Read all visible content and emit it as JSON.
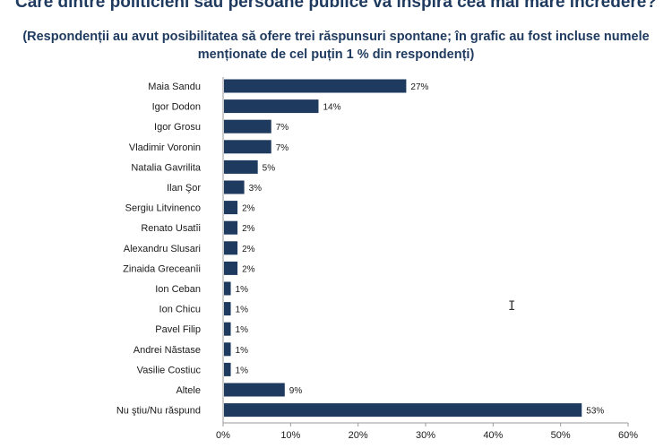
{
  "title": "Care dintre politicieni sau persoane publice vă inspiră cea mai mare încredere?",
  "subtitle": "(Respondenții au avut posibilitatea să ofere trei răspunsuri spontane; în grafic au fost incluse numele menționate de cel puțin 1 % din respondenți)",
  "chart_data": {
    "type": "bar",
    "orientation": "horizontal",
    "categories": [
      "Maia Sandu",
      "Igor Dodon",
      "Igor Grosu",
      "Vladimir Voronin",
      "Natalia Gavrilita",
      "Ilan Şor",
      "Sergiu Litvinenco",
      "Renato Usatîi",
      "Alexandru Slusari",
      "Zinaida Greceanîi",
      "Ion Ceban",
      "Ion Chicu",
      "Pavel Filip",
      "Andrei Năstase",
      "Vasilie Costiuc",
      "Altele",
      "Nu ştiu/Nu răspund"
    ],
    "values": [
      27,
      14,
      7,
      7,
      5,
      3,
      2,
      2,
      2,
      2,
      1,
      1,
      1,
      1,
      1,
      9,
      53
    ],
    "value_labels": [
      "27%",
      "14%",
      "7%",
      "7%",
      "5%",
      "3%",
      "2%",
      "2%",
      "2%",
      "2%",
      "1%",
      "1%",
      "1%",
      "1%",
      "1%",
      "9%",
      "53%"
    ],
    "xlim": [
      0,
      60
    ],
    "xticks": [
      0,
      10,
      20,
      30,
      40,
      50,
      60
    ],
    "xtick_labels": [
      "0%",
      "10%",
      "20%",
      "30%",
      "40%",
      "50%",
      "60%"
    ],
    "bar_color": "#1f3a5f",
    "grid": false
  }
}
